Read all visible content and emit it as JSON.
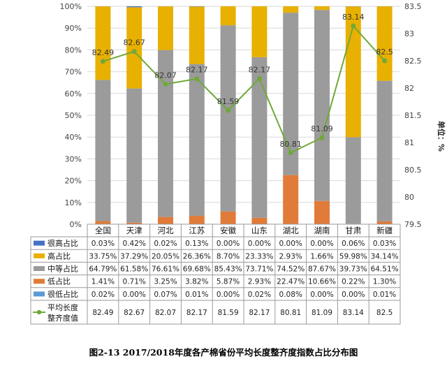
{
  "caption": "图2-13 2017/2018年度各产棉省份平均长度整齐度指数占比分布图",
  "colors": {
    "very_high": "#4472C4",
    "high": "#E8B000",
    "medium": "#9B9B9B",
    "low": "#E07B39",
    "very_low": "#5B9BD5",
    "line": "#70A83A",
    "grid": "#D9D9D9",
    "axis_text": "#444444"
  },
  "chart_data": {
    "type": "bar",
    "stacked": true,
    "categories": [
      "全国",
      "天津",
      "河北",
      "江苏",
      "安徽",
      "山东",
      "湖北",
      "湖南",
      "甘肃",
      "新疆"
    ],
    "series": [
      {
        "name": "很高占比",
        "key": "very_high",
        "values": [
          0.03,
          0.42,
          0.02,
          0.13,
          0.0,
          0.0,
          0.0,
          0.0,
          0.06,
          0.03
        ],
        "labels": [
          "0.03%",
          "0.42%",
          "0.02%",
          "0.13%",
          "0.00%",
          "0.00%",
          "0.00%",
          "0.00%",
          "0.06%",
          "0.03%"
        ]
      },
      {
        "name": "高占比",
        "key": "high",
        "values": [
          33.75,
          37.29,
          20.05,
          26.36,
          8.7,
          23.33,
          2.93,
          1.66,
          59.98,
          34.14
        ],
        "labels": [
          "33.75%",
          "37.29%",
          "20.05%",
          "26.36%",
          "8.70%",
          "23.33%",
          "2.93%",
          "1.66%",
          "59.98%",
          "34.14%"
        ]
      },
      {
        "name": "中等占比",
        "key": "medium",
        "values": [
          64.79,
          61.58,
          76.61,
          69.68,
          85.43,
          73.71,
          74.52,
          87.67,
          39.73,
          64.51
        ],
        "labels": [
          "64.79%",
          "61.58%",
          "76.61%",
          "69.68%",
          "85.43%",
          "73.71%",
          "74.52%",
          "87.67%",
          "39.73%",
          "64.51%"
        ]
      },
      {
        "name": "低占比",
        "key": "low",
        "values": [
          1.41,
          0.71,
          3.25,
          3.82,
          5.87,
          2.93,
          22.47,
          10.66,
          0.22,
          1.3
        ],
        "labels": [
          "1.41%",
          "0.71%",
          "3.25%",
          "3.82%",
          "5.87%",
          "2.93%",
          "22.47%",
          "10.66%",
          "0.22%",
          "1.30%"
        ]
      },
      {
        "name": "很低占比",
        "key": "very_low",
        "values": [
          0.02,
          0.0,
          0.07,
          0.01,
          0.0,
          0.02,
          0.08,
          0.0,
          0.0,
          0.01
        ],
        "labels": [
          "0.02%",
          "0.00%",
          "0.07%",
          "0.01%",
          "0.00%",
          "0.02%",
          "0.08%",
          "0.00%",
          "0.00%",
          "0.01%"
        ]
      }
    ],
    "line": {
      "name": "平均长度整齐度值",
      "name_lines": [
        "平均长度",
        "整齐度值"
      ],
      "values": [
        82.49,
        82.67,
        82.07,
        82.17,
        81.59,
        82.17,
        80.81,
        81.09,
        83.14,
        82.5
      ],
      "labels": [
        "82.49",
        "82.67",
        "82.07",
        "82.17",
        "81.59",
        "82.17",
        "80.81",
        "81.09",
        "83.14",
        "82.5"
      ]
    },
    "y_left": {
      "min": 0,
      "max": 100,
      "step": 10,
      "ticks": [
        "0%",
        "10%",
        "20%",
        "30%",
        "40%",
        "50%",
        "60%",
        "70%",
        "80%",
        "90%",
        "100%"
      ]
    },
    "y_right": {
      "min": 79.5,
      "max": 83.5,
      "step": 0.5,
      "label": "单位：%",
      "ticks": [
        "79.5",
        "80",
        "80.5",
        "81",
        "81.5",
        "82",
        "82.5",
        "83",
        "83.5"
      ]
    },
    "grid": true,
    "legend": "data-table"
  }
}
